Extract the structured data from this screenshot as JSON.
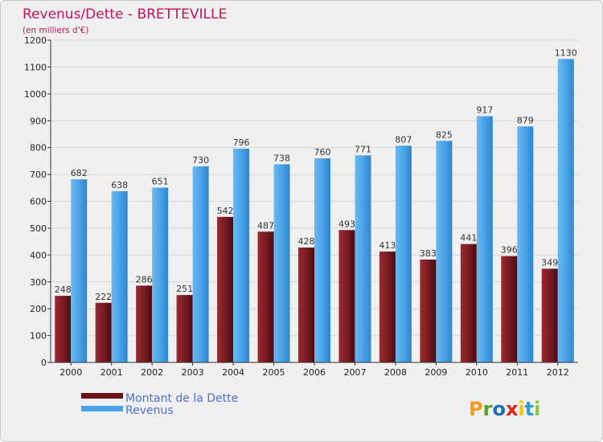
{
  "chart_data": {
    "type": "bar",
    "title": "Revenus/Dette - BRETTEVILLE",
    "subtitle": "(en milliers d'€)",
    "categories": [
      "2000",
      "2001",
      "2002",
      "2003",
      "2004",
      "2005",
      "2006",
      "2007",
      "2008",
      "2009",
      "2010",
      "2011",
      "2012"
    ],
    "series": [
      {
        "name": "Montant de la Dette",
        "color": "#7a1c24",
        "values": [
          248,
          222,
          286,
          251,
          542,
          487,
          428,
          493,
          413,
          383,
          441,
          396,
          349
        ]
      },
      {
        "name": "Revenus",
        "color": "#4aa3e8",
        "values": [
          682,
          638,
          651,
          730,
          796,
          738,
          760,
          771,
          807,
          825,
          917,
          879,
          1130
        ]
      }
    ],
    "ylim": [
      0,
      1200
    ],
    "yticks": [
      0,
      100,
      200,
      300,
      400,
      500,
      600,
      700,
      800,
      900,
      1000,
      1100,
      1200
    ],
    "grid": true,
    "legend_position": "bottom-left"
  },
  "brand": {
    "name": "Proxiti",
    "letters": [
      "P",
      "r",
      "o",
      "x",
      "i",
      "t",
      "i"
    ],
    "colors": [
      "#f39c12",
      "#5aa02c",
      "#1f6fb5",
      "#e2231a",
      "#f7c600",
      "#2a9fd6",
      "#8cc63f"
    ]
  }
}
